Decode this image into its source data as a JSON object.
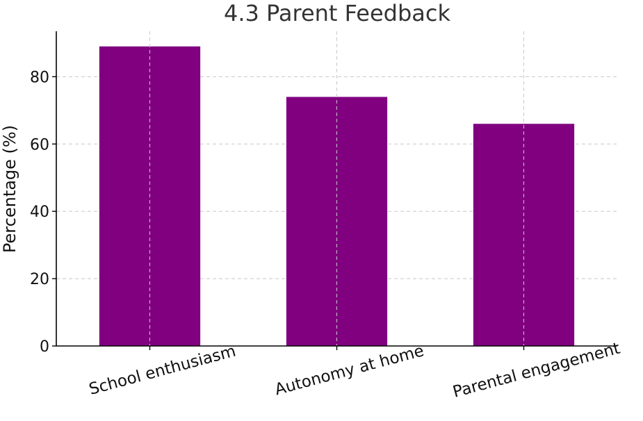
{
  "chart_data": {
    "type": "bar",
    "title": "4.3 Parent Feedback",
    "xlabel": "",
    "ylabel": "Percentage (%)",
    "categories": [
      "School enthusiasm",
      "Autonomy at home",
      "Parental engagement"
    ],
    "values": [
      89,
      74,
      66
    ],
    "ylim": [
      0,
      93.5
    ],
    "yticks": [
      0,
      20,
      40,
      60,
      80
    ],
    "grid": true,
    "bar_color": "#800080",
    "legend": "none"
  }
}
